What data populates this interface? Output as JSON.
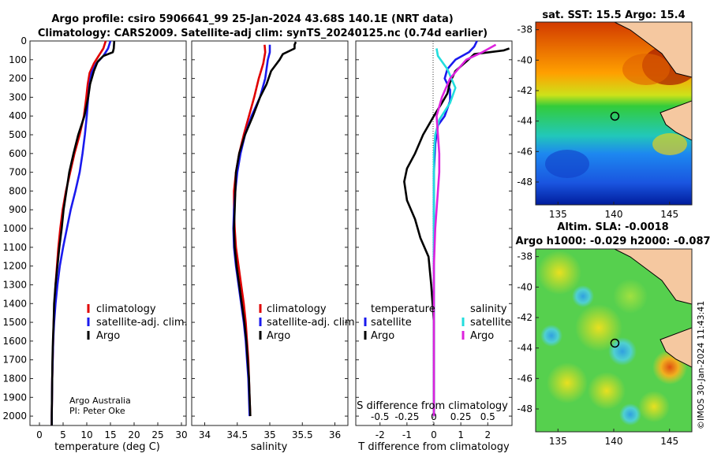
{
  "title_line1": "Argo profile: csiro 5906641_99 25-Jan-2024 43.68S 140.1E (NRT data)",
  "title_line2": "Climatology: CARS2009. Satellite-adj clim: synTS_20240125.nc (0.74d earlier)",
  "credit": [
    "Argo Australia",
    "PI: Peter Oke"
  ],
  "stamp": "©IMOS 30-Jan-2024 11:43:41",
  "colors": {
    "clim": "#e00000",
    "sat": "#1a1aee",
    "argo": "#000000",
    "sat_s": "#22dddd",
    "argo_s": "#dd22dd",
    "land": "#f5c8a0"
  },
  "chart_data": [
    {
      "type": "line",
      "id": "temperature",
      "xlabel": "temperature (deg C)",
      "xlim": [
        -2,
        31
      ],
      "xticks": [
        "0",
        "5",
        "10",
        "15",
        "20",
        "25",
        "30"
      ],
      "ylim": [
        0,
        2050
      ],
      "yticks": [
        "0",
        "100",
        "200",
        "300",
        "400",
        "500",
        "600",
        "700",
        "800",
        "900",
        "1000",
        "1100",
        "1200",
        "1300",
        "1400",
        "1500",
        "1600",
        "1700",
        "1800",
        "1900",
        "2000"
      ],
      "legend": [
        "climatology",
        "satellite-adj. clim.",
        "Argo"
      ],
      "series": [
        {
          "name": "climatology",
          "color": "#e00000",
          "points": [
            [
              14,
              0
            ],
            [
              13.5,
              40
            ],
            [
              12.5,
              80
            ],
            [
              11.5,
              120
            ],
            [
              10.6,
              170
            ],
            [
              10.2,
              230
            ],
            [
              9.9,
              300
            ],
            [
              9.4,
              400
            ],
            [
              8.5,
              500
            ],
            [
              7.4,
              600
            ],
            [
              6.5,
              700
            ],
            [
              5.6,
              800
            ],
            [
              4.9,
              900
            ],
            [
              4.4,
              1000
            ],
            [
              4.0,
              1100
            ],
            [
              3.7,
              1200
            ],
            [
              3.4,
              1300
            ],
            [
              3.2,
              1400
            ],
            [
              3.0,
              1500
            ],
            [
              2.9,
              1600
            ],
            [
              2.8,
              1700
            ],
            [
              2.7,
              1800
            ],
            [
              2.65,
              1900
            ],
            [
              2.6,
              2000
            ],
            [
              2.6,
              2050
            ]
          ]
        },
        {
          "name": "satellite-adj. clim.",
          "color": "#1a1aee",
          "points": [
            [
              15,
              0
            ],
            [
              14.5,
              40
            ],
            [
              13.5,
              80
            ],
            [
              12,
              120
            ],
            [
              11,
              170
            ],
            [
              10.6,
              230
            ],
            [
              10.3,
              300
            ],
            [
              10,
              400
            ],
            [
              9.6,
              500
            ],
            [
              9.1,
              600
            ],
            [
              8.5,
              700
            ],
            [
              7.6,
              800
            ],
            [
              6.6,
              900
            ],
            [
              5.8,
              1000
            ],
            [
              5,
              1100
            ],
            [
              4.3,
              1200
            ],
            [
              3.8,
              1300
            ],
            [
              3.4,
              1400
            ],
            [
              3.1,
              1500
            ],
            [
              2.9,
              1600
            ],
            [
              2.8,
              1700
            ],
            [
              2.7,
              1800
            ],
            [
              2.65,
              1900
            ],
            [
              2.6,
              2000
            ],
            [
              2.6,
              2050
            ]
          ]
        },
        {
          "name": "Argo",
          "color": "#000000",
          "points": [
            [
              15.8,
              0
            ],
            [
              15.7,
              40
            ],
            [
              15.5,
              60
            ],
            [
              13.5,
              80
            ],
            [
              12.3,
              110
            ],
            [
              11.5,
              160
            ],
            [
              10.7,
              230
            ],
            [
              10.3,
              300
            ],
            [
              9.5,
              400
            ],
            [
              8.2,
              500
            ],
            [
              7.2,
              600
            ],
            [
              6.3,
              700
            ],
            [
              5.7,
              800
            ],
            [
              5.1,
              900
            ],
            [
              4.7,
              1000
            ],
            [
              4.2,
              1100
            ],
            [
              3.8,
              1200
            ],
            [
              3.4,
              1300
            ],
            [
              3.1,
              1400
            ],
            [
              3.0,
              1500
            ],
            [
              2.85,
              1600
            ],
            [
              2.75,
              1700
            ],
            [
              2.7,
              1800
            ],
            [
              2.65,
              1900
            ],
            [
              2.6,
              2000
            ],
            [
              2.6,
              2050
            ]
          ]
        }
      ]
    },
    {
      "type": "line",
      "id": "salinity",
      "xlabel": "salinity",
      "xlim": [
        33.8,
        36.2
      ],
      "xticks": [
        "34",
        "34.5",
        "35",
        "35.5",
        "36"
      ],
      "ylim": [
        0,
        2050
      ],
      "legend": [
        "climatology",
        "satellite-adj. clim.",
        "Argo"
      ],
      "series": [
        {
          "name": "climatology",
          "color": "#e00000",
          "points": [
            [
              34.92,
              20
            ],
            [
              34.93,
              60
            ],
            [
              34.9,
              120
            ],
            [
              34.83,
              200
            ],
            [
              34.76,
              300
            ],
            [
              34.68,
              400
            ],
            [
              34.6,
              500
            ],
            [
              34.53,
              600
            ],
            [
              34.48,
              700
            ],
            [
              34.45,
              800
            ],
            [
              34.45,
              900
            ],
            [
              34.46,
              1000
            ],
            [
              34.48,
              1100
            ],
            [
              34.52,
              1200
            ],
            [
              34.56,
              1300
            ],
            [
              34.6,
              1400
            ],
            [
              34.63,
              1500
            ],
            [
              34.65,
              1600
            ],
            [
              34.67,
              1700
            ],
            [
              34.68,
              1800
            ],
            [
              34.69,
              1900
            ],
            [
              34.7,
              2000
            ]
          ]
        },
        {
          "name": "satellite-adj. clim.",
          "color": "#1a1aee",
          "points": [
            [
              35.0,
              20
            ],
            [
              35.0,
              60
            ],
            [
              34.97,
              100
            ],
            [
              34.93,
              200
            ],
            [
              34.85,
              300
            ],
            [
              34.72,
              400
            ],
            [
              34.62,
              500
            ],
            [
              34.55,
              600
            ],
            [
              34.5,
              700
            ],
            [
              34.47,
              800
            ],
            [
              34.45,
              900
            ],
            [
              34.44,
              1000
            ],
            [
              34.45,
              1100
            ],
            [
              34.48,
              1200
            ],
            [
              34.52,
              1300
            ],
            [
              34.56,
              1400
            ],
            [
              34.6,
              1500
            ],
            [
              34.63,
              1600
            ],
            [
              34.65,
              1700
            ],
            [
              34.67,
              1800
            ],
            [
              34.68,
              1900
            ],
            [
              34.69,
              2000
            ]
          ]
        },
        {
          "name": "Argo",
          "color": "#000000",
          "points": [
            [
              35.4,
              5
            ],
            [
              35.38,
              20
            ],
            [
              35.38,
              40
            ],
            [
              35.2,
              70
            ],
            [
              35.15,
              100
            ],
            [
              35.02,
              160
            ],
            [
              34.95,
              230
            ],
            [
              34.85,
              300
            ],
            [
              34.74,
              400
            ],
            [
              34.62,
              500
            ],
            [
              34.53,
              600
            ],
            [
              34.48,
              700
            ],
            [
              34.47,
              800
            ],
            [
              34.46,
              900
            ],
            [
              34.45,
              1000
            ],
            [
              34.46,
              1100
            ],
            [
              34.49,
              1200
            ],
            [
              34.53,
              1300
            ],
            [
              34.57,
              1400
            ],
            [
              34.61,
              1500
            ],
            [
              34.64,
              1600
            ],
            [
              34.66,
              1700
            ],
            [
              34.68,
              1800
            ],
            [
              34.69,
              1900
            ],
            [
              34.7,
              2000
            ]
          ]
        }
      ]
    },
    {
      "type": "line",
      "id": "difference",
      "xlabel": "T difference from climatology",
      "xlabel_top": "S difference from climatology",
      "xlim": [
        -2.9,
        2.9
      ],
      "xticks": [
        "-2",
        "-1",
        "0",
        "1",
        "2"
      ],
      "xticks_top": [
        "-0.5",
        "-0.25",
        "0",
        "0.25",
        "0.5"
      ],
      "xticks_top_values": [
        -0.5,
        -0.25,
        0,
        0.25,
        0.5
      ],
      "s_scale_per_t": 0.25,
      "ylim": [
        0,
        2050
      ],
      "legend_t_title": "temperature",
      "legend_s_title": "salinity",
      "legend_t": [
        "satellite",
        "Argo"
      ],
      "legend_s": [
        "satellite",
        "Argo"
      ],
      "series": [
        {
          "name": "T satellite",
          "color": "#1a1aee",
          "points": [
            [
              1.6,
              0
            ],
            [
              1.5,
              30
            ],
            [
              1.3,
              60
            ],
            [
              0.8,
              100
            ],
            [
              0.5,
              150
            ],
            [
              0.4,
              200
            ],
            [
              0.6,
              260
            ],
            [
              0.6,
              320
            ],
            [
              0.4,
              400
            ],
            [
              0.15,
              450
            ],
            [
              0.05,
              550
            ],
            [
              0,
              700
            ],
            [
              0,
              900
            ],
            [
              0,
              1100
            ],
            [
              0,
              1400
            ],
            [
              0,
              1700
            ],
            [
              0,
              2000
            ]
          ]
        },
        {
          "name": "T Argo",
          "color": "#000000",
          "points": [
            [
              2.8,
              40
            ],
            [
              2.6,
              50
            ],
            [
              1.5,
              70
            ],
            [
              1.2,
              110
            ],
            [
              0.8,
              160
            ],
            [
              0.6,
              220
            ],
            [
              0.5,
              280
            ],
            [
              0.3,
              330
            ],
            [
              0,
              400
            ],
            [
              -0.4,
              500
            ],
            [
              -0.7,
              600
            ],
            [
              -1.0,
              680
            ],
            [
              -1.1,
              750
            ],
            [
              -1.0,
              850
            ],
            [
              -0.7,
              950
            ],
            [
              -0.5,
              1050
            ],
            [
              -0.2,
              1150
            ],
            [
              -0.1,
              1300
            ],
            [
              0,
              1500
            ],
            [
              0,
              1700
            ],
            [
              0,
              1900
            ],
            [
              0,
              2000
            ]
          ]
        },
        {
          "name": "S satellite",
          "color": "#22dddd",
          "points": [
            [
              0.1,
              40
            ],
            [
              0.15,
              80
            ],
            [
              0.5,
              150
            ],
            [
              0.8,
              250
            ],
            [
              0.6,
              330
            ],
            [
              0.2,
              420
            ],
            [
              0.05,
              500
            ],
            [
              0,
              600
            ],
            [
              0,
              900
            ],
            [
              0,
              1200
            ],
            [
              0,
              1500
            ],
            [
              0,
              1800
            ],
            [
              0,
              2000
            ]
          ]
        },
        {
          "name": "S Argo",
          "color": "#dd22dd",
          "points": [
            [
              2.3,
              20
            ],
            [
              1.8,
              60
            ],
            [
              1.2,
              100
            ],
            [
              0.9,
              150
            ],
            [
              0.6,
              200
            ],
            [
              0.3,
              300
            ],
            [
              0.1,
              400
            ],
            [
              0.15,
              500
            ],
            [
              0.2,
              600
            ],
            [
              0.2,
              700
            ],
            [
              0.15,
              800
            ],
            [
              0.1,
              900
            ],
            [
              0.05,
              1000
            ],
            [
              0,
              1200
            ],
            [
              0,
              1400
            ],
            [
              0,
              1600
            ],
            [
              0,
              1800
            ],
            [
              0,
              2000
            ]
          ]
        }
      ]
    },
    {
      "type": "heatmap",
      "id": "sst-map",
      "title": "sat. SST: 15.5 Argo: 15.4",
      "xlim": [
        133,
        147
      ],
      "ylim": [
        -49.5,
        -37.5
      ],
      "xticks": [
        "135",
        "140",
        "145"
      ],
      "yticks": [
        "-38",
        "-40",
        "-42",
        "-44",
        "-46",
        "-48"
      ],
      "marker": [
        140.1,
        -43.68
      ]
    },
    {
      "type": "heatmap",
      "id": "sla-map",
      "title_line1": "Altim. SLA: -0.0018",
      "title_line2": "Argo h1000: -0.029 h2000: -0.087",
      "xlim": [
        133,
        147
      ],
      "ylim": [
        -49.5,
        -37.5
      ],
      "xticks": [
        "135",
        "140",
        "145"
      ],
      "yticks": [
        "-38",
        "-40",
        "-42",
        "-44",
        "-46",
        "-48"
      ],
      "marker": [
        140.1,
        -43.68
      ]
    }
  ]
}
